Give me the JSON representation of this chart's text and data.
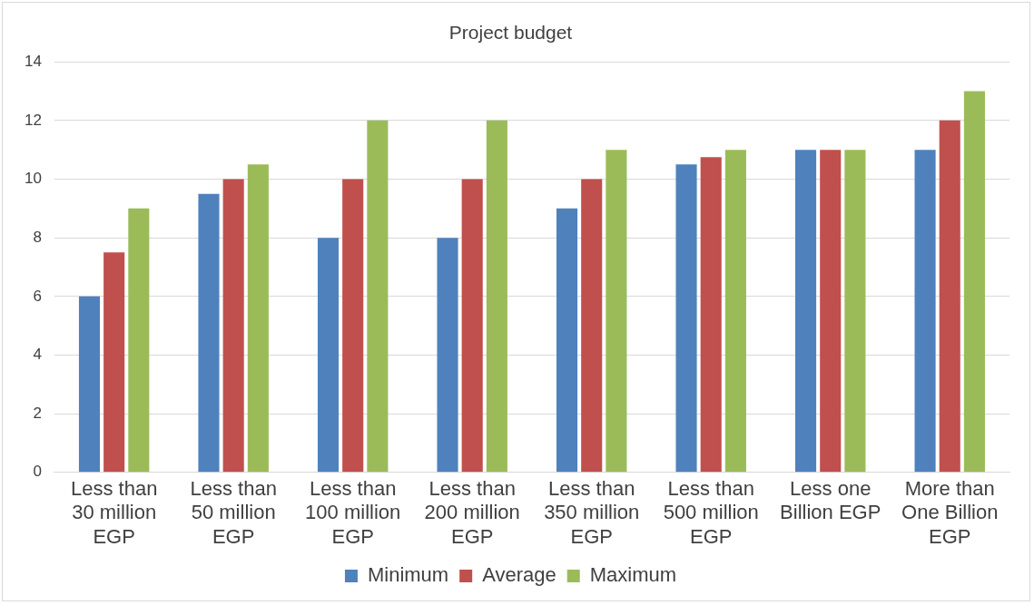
{
  "chart_data": {
    "type": "bar",
    "title": "Project budget",
    "categories": [
      "Less than 30 million EGP",
      "Less than 50 million EGP",
      "Less than 100 million EGP",
      "Less than 200 million EGP",
      "Less than 350 million EGP",
      "Less than 500 million EGP",
      "Less one Billion EGP",
      "More than One Billion EGP"
    ],
    "series": [
      {
        "name": "Minimum",
        "color": "#4f81bd",
        "values": [
          6,
          9.5,
          8,
          8,
          9,
          10.5,
          11,
          11
        ]
      },
      {
        "name": "Average",
        "color": "#c0504d",
        "values": [
          7.5,
          10,
          10,
          10,
          10,
          10.75,
          11,
          12
        ]
      },
      {
        "name": "Maximum",
        "color": "#9bbb59",
        "values": [
          9,
          10.5,
          12,
          12,
          11,
          11,
          11,
          13
        ]
      }
    ],
    "ylim": [
      0,
      14
    ],
    "yticks": [
      0,
      2,
      4,
      6,
      8,
      10,
      12,
      14
    ],
    "grid": "y",
    "legend": "bottom"
  }
}
